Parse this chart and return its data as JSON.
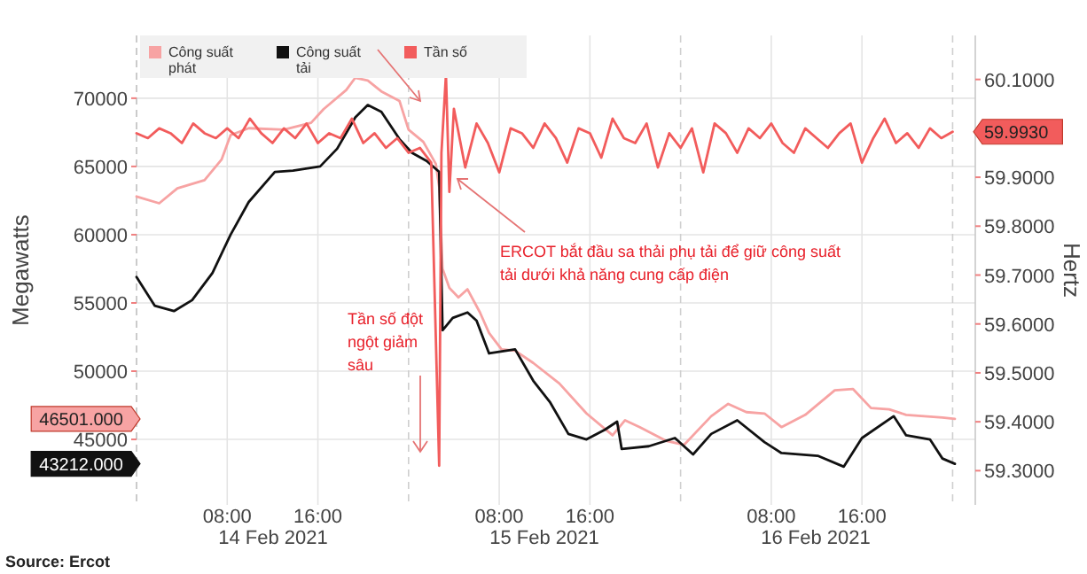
{
  "chart_data": {
    "type": "line",
    "ylabel": "Megawatts",
    "y2label": "Hertz",
    "xlim": [
      "2021-02-14T00:00",
      "2021-02-17T02:00"
    ],
    "ylim": [
      40200,
      74600
    ],
    "y2lim": [
      59.23,
      60.19
    ],
    "yticks": [
      {
        "value": 43212,
        "label": "43212.000"
      },
      45000,
      {
        "value": 46501,
        "label": "46501.000"
      },
      50000,
      55000,
      60000,
      65000,
      70000
    ],
    "y2ticks": [
      {
        "value": 59.3,
        "label": "59.3000"
      },
      {
        "value": 59.4,
        "label": "59.4000"
      },
      {
        "value": 59.5,
        "label": "59.5000"
      },
      {
        "value": 59.6,
        "label": "59.6000"
      },
      {
        "value": 59.7,
        "label": "59.7000"
      },
      {
        "value": 59.8,
        "label": "59.8000"
      },
      {
        "value": 59.9,
        "label": "59.9000"
      },
      {
        "value": 59.993,
        "label": "59.9930"
      },
      {
        "value": 60.1,
        "label": "60.1000"
      }
    ],
    "xticks": [
      {
        "value": "2021-02-14T00:00",
        "label": null
      },
      {
        "value": "2021-02-14T08:00",
        "label": "08:00"
      },
      {
        "value": "2021-02-14T16:00",
        "label": "16:00"
      },
      {
        "value": "2021-02-15T00:00",
        "label": null
      },
      {
        "value": "2021-02-15T08:00",
        "label": "08:00"
      },
      {
        "value": "2021-02-15T16:00",
        "label": "16:00"
      },
      {
        "value": "2021-02-16T00:00",
        "label": null
      },
      {
        "value": "2021-02-16T08:00",
        "label": "08:00"
      },
      {
        "value": "2021-02-16T16:00",
        "label": "16:00"
      },
      {
        "value": "2021-02-17T00:00",
        "label": null
      }
    ],
    "grid": true,
    "legend": "top left",
    "annotations": [
      "ERCOT bắt đầu sa thải phụ tải để giữ công suất tải dưới khả năng cung cấp điện",
      "Tần số đột ngột giảm sâu",
      "Source: Ercot",
      "14 Feb 2021",
      "15 Feb 2021",
      "16 Feb 2021"
    ],
    "series": [
      {
        "name": "Công suất phát",
        "color": "#f7a3a3",
        "x": [
          "2021-02-14T00:00",
          "2021-02-14T02:00",
          "2021-02-14T03:36",
          "2021-02-14T06:00",
          "2021-02-14T07:30",
          "2021-02-14T08:18",
          "2021-02-14T09:54",
          "2021-02-14T13:00",
          "2021-02-14T15:24",
          "2021-02-14T16:30",
          "2021-02-14T18:30",
          "2021-02-14T19:18",
          "2021-02-14T20:24",
          "2021-02-14T21:36",
          "2021-02-14T23:12",
          "2021-02-15T00:00",
          "2021-02-15T01:18",
          "2021-02-15T02:24",
          "2021-02-15T02:42",
          "2021-02-15T03:00",
          "2021-02-15T03:36",
          "2021-02-15T04:24",
          "2021-02-15T05:12",
          "2021-02-15T06:18",
          "2021-02-15T07:06",
          "2021-02-15T08:12",
          "2021-02-15T09:24",
          "2021-02-15T11:00",
          "2021-02-15T13:18",
          "2021-02-15T15:42",
          "2021-02-15T18:00",
          "2021-02-15T19:06",
          "2021-02-15T20:24",
          "2021-02-15T22:42",
          "2021-02-16T00:18",
          "2021-02-16T02:42",
          "2021-02-16T04:12",
          "2021-02-16T05:48",
          "2021-02-16T07:24",
          "2021-02-16T08:54",
          "2021-02-16T11:00",
          "2021-02-16T13:36",
          "2021-02-16T15:12",
          "2021-02-16T16:48",
          "2021-02-16T18:24",
          "2021-02-16T19:54",
          "2021-02-16T21:30",
          "2021-02-16T23:06",
          "2021-02-17T00:12"
        ],
        "values": [
          62800,
          62300,
          63400,
          64000,
          65500,
          67300,
          67800,
          67700,
          68200,
          69200,
          70600,
          71500,
          71300,
          70500,
          69800,
          67700,
          66800,
          65200,
          63500,
          57500,
          56100,
          55400,
          56000,
          54300,
          52800,
          51600,
          51500,
          50600,
          49100,
          46900,
          45300,
          46400,
          45900,
          44900,
          44600,
          46700,
          47600,
          47000,
          46900,
          45900,
          46800,
          48600,
          48700,
          47300,
          47200,
          46800,
          46700,
          46600,
          46501
        ]
      },
      {
        "name": "Công suất tải",
        "color": "#111111",
        "x": [
          "2021-02-14T00:00",
          "2021-02-14T01:36",
          "2021-02-14T03:18",
          "2021-02-14T04:54",
          "2021-02-14T06:42",
          "2021-02-14T08:18",
          "2021-02-14T09:54",
          "2021-02-14T12:12",
          "2021-02-14T13:48",
          "2021-02-14T16:12",
          "2021-02-14T17:42",
          "2021-02-14T19:18",
          "2021-02-14T20:24",
          "2021-02-14T21:36",
          "2021-02-14T23:12",
          "2021-02-15T00:18",
          "2021-02-15T01:36",
          "2021-02-15T02:42",
          "2021-02-15T03:00",
          "2021-02-15T03:30",
          "2021-02-15T03:54",
          "2021-02-15T05:12",
          "2021-02-15T06:00",
          "2021-02-15T07:06",
          "2021-02-15T09:24",
          "2021-02-15T11:00",
          "2021-02-15T12:30",
          "2021-02-15T14:06",
          "2021-02-15T15:42",
          "2021-02-15T17:18",
          "2021-02-15T18:24",
          "2021-02-15T18:48",
          "2021-02-15T21:12",
          "2021-02-15T23:30",
          "2021-02-16T01:06",
          "2021-02-16T02:42",
          "2021-02-16T05:00",
          "2021-02-16T07:24",
          "2021-02-16T08:54",
          "2021-02-16T12:06",
          "2021-02-16T14:24",
          "2021-02-16T16:00",
          "2021-02-16T18:48",
          "2021-02-16T19:54",
          "2021-02-16T22:00",
          "2021-02-16T23:06",
          "2021-02-17T00:12"
        ],
        "values": [
          56900,
          54800,
          54400,
          55200,
          57200,
          60000,
          62400,
          64600,
          64700,
          65000,
          66300,
          68600,
          69500,
          69000,
          67000,
          66000,
          65400,
          64600,
          53000,
          53500,
          53900,
          54300,
          53700,
          51300,
          51600,
          49300,
          47700,
          45400,
          45000,
          45700,
          46300,
          44300,
          44500,
          45100,
          43900,
          45400,
          46400,
          44800,
          44000,
          43800,
          43000,
          45100,
          46700,
          45300,
          45000,
          43600,
          43212
        ]
      },
      {
        "name": "Tần số",
        "color": "#f25c5c",
        "axis": "y2",
        "x": [
          "2021-02-14T00:00",
          "2021-02-14T01:00",
          "2021-02-14T02:00",
          "2021-02-14T03:00",
          "2021-02-14T04:00",
          "2021-02-14T05:00",
          "2021-02-14T06:00",
          "2021-02-14T07:00",
          "2021-02-14T08:00",
          "2021-02-14T09:00",
          "2021-02-14T10:00",
          "2021-02-14T11:00",
          "2021-02-14T12:00",
          "2021-02-14T13:00",
          "2021-02-14T14:00",
          "2021-02-14T15:00",
          "2021-02-14T16:00",
          "2021-02-14T17:00",
          "2021-02-14T18:00",
          "2021-02-14T19:00",
          "2021-02-14T20:00",
          "2021-02-14T21:00",
          "2021-02-14T22:00",
          "2021-02-14T23:00",
          "2021-02-15T00:00",
          "2021-02-15T01:00",
          "2021-02-15T02:00",
          "2021-02-15T02:42",
          "2021-02-15T02:54",
          "2021-02-15T03:18",
          "2021-02-15T03:36",
          "2021-02-15T04:00",
          "2021-02-15T05:00",
          "2021-02-15T06:00",
          "2021-02-15T07:00",
          "2021-02-15T08:00",
          "2021-02-15T09:00",
          "2021-02-15T10:00",
          "2021-02-15T11:00",
          "2021-02-15T12:00",
          "2021-02-15T13:00",
          "2021-02-15T14:00",
          "2021-02-15T15:00",
          "2021-02-15T16:00",
          "2021-02-15T17:00",
          "2021-02-15T18:00",
          "2021-02-15T19:00",
          "2021-02-15T20:00",
          "2021-02-15T21:00",
          "2021-02-15T22:00",
          "2021-02-15T23:00",
          "2021-02-16T00:00",
          "2021-02-16T01:00",
          "2021-02-16T02:00",
          "2021-02-16T03:00",
          "2021-02-16T04:00",
          "2021-02-16T05:00",
          "2021-02-16T06:00",
          "2021-02-16T07:00",
          "2021-02-16T08:00",
          "2021-02-16T09:00",
          "2021-02-16T10:00",
          "2021-02-16T11:00",
          "2021-02-16T12:00",
          "2021-02-16T13:00",
          "2021-02-16T14:00",
          "2021-02-16T15:00",
          "2021-02-16T16:00",
          "2021-02-16T17:00",
          "2021-02-16T18:00",
          "2021-02-16T19:00",
          "2021-02-16T20:00",
          "2021-02-16T21:00",
          "2021-02-16T22:00",
          "2021-02-16T23:00",
          "2021-02-17T00:00"
        ],
        "values": [
          59.99,
          59.98,
          60.0,
          59.99,
          59.97,
          60.01,
          59.99,
          59.98,
          60.0,
          59.98,
          60.02,
          59.99,
          59.97,
          60.0,
          59.98,
          60.01,
          59.97,
          59.99,
          59.98,
          60.02,
          59.97,
          59.99,
          59.96,
          59.98,
          59.95,
          59.96,
          59.93,
          59.31,
          59.95,
          60.11,
          59.87,
          60.04,
          59.92,
          60.01,
          59.97,
          59.91,
          60.0,
          59.99,
          59.96,
          60.01,
          59.98,
          59.93,
          60.0,
          59.99,
          59.94,
          60.02,
          59.98,
          59.97,
          60.01,
          59.92,
          59.99,
          59.96,
          60.0,
          59.91,
          60.01,
          59.99,
          59.95,
          60.0,
          59.98,
          60.01,
          59.97,
          59.95,
          60.0,
          59.98,
          59.96,
          59.99,
          60.01,
          59.93,
          59.98,
          60.02,
          59.97,
          59.99,
          59.96,
          60.0,
          59.98,
          59.993
        ]
      }
    ]
  }
}
